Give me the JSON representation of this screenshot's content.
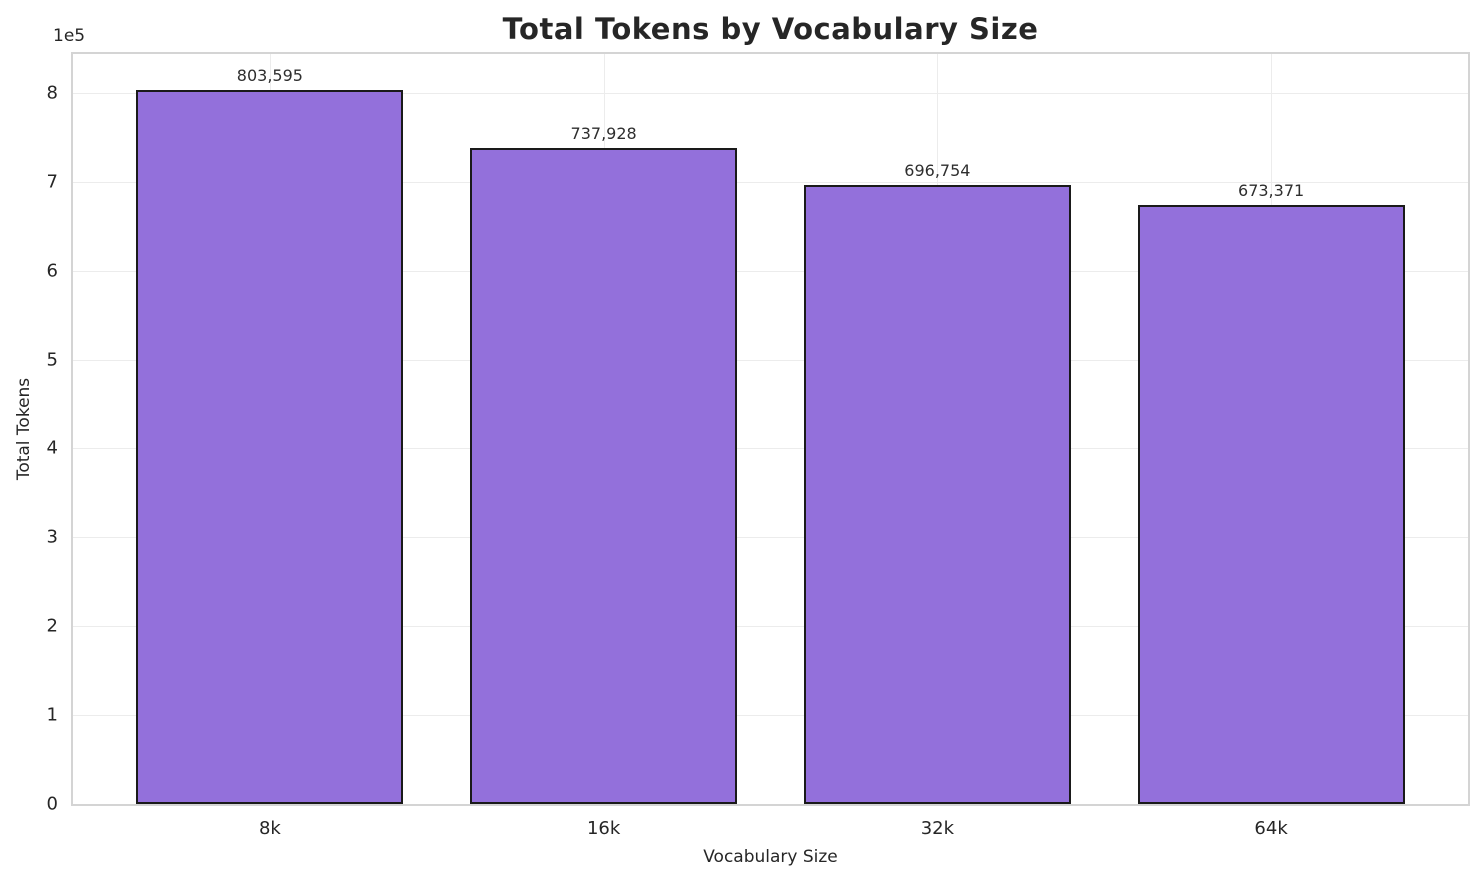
{
  "chart_data": {
    "type": "bar",
    "title": "Total Tokens by Vocabulary Size",
    "categories": [
      "8k",
      "16k",
      "32k",
      "64k"
    ],
    "values": [
      803595,
      737928,
      696754,
      673371
    ],
    "value_labels": [
      "803,595",
      "737,928",
      "696,754",
      "673,371"
    ],
    "xlabel": "Vocabulary Size",
    "ylabel": "Total Tokens",
    "ylim": [
      0,
      843775
    ],
    "y_tick_values": [
      0,
      100000,
      200000,
      300000,
      400000,
      500000,
      600000,
      700000,
      800000
    ],
    "y_tick_labels": [
      "0",
      "1",
      "2",
      "3",
      "4",
      "5",
      "6",
      "7",
      "8"
    ],
    "y_offset_label": "1e5",
    "grid": true,
    "legend": "none",
    "bar_color": "#9370DB",
    "bar_edge_color": "#1a1a1a",
    "bar_width_fraction": 0.8
  }
}
